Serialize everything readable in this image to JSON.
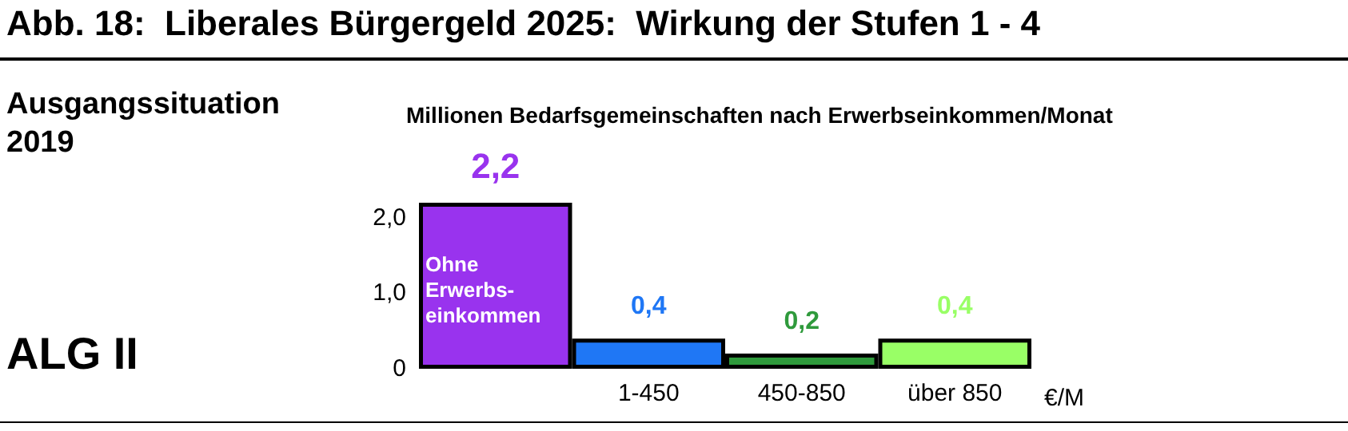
{
  "chart_data": {
    "type": "bar",
    "title": "Abb. 18:  Liberales Bürgergeld 2025:  Wirkung der Stufen 1 - 4",
    "subtitle": "Millionen Bedarfsgemeinschaften nach Erwerbseinkommen/Monat",
    "xlabel": "€/M",
    "categories": [
      null,
      "1-450",
      "450-850",
      "über 850"
    ],
    "values": [
      2.2,
      0.4,
      0.2,
      0.4
    ],
    "value_labels": [
      "2,2",
      "0,4",
      "0,2",
      "0,4"
    ],
    "colors": [
      "#9933ee",
      "#1f77f5",
      "#2f9a3c",
      "#99ff66"
    ],
    "ylim": [
      0,
      2.2
    ],
    "yticks": [
      {
        "value": 0,
        "label": "0"
      },
      {
        "value": 1,
        "label": "1,0"
      },
      {
        "value": 2,
        "label": "2,0"
      }
    ],
    "annotations": [
      "Ausgangssituation 2019",
      "ALG II",
      "Ohne Erwerbs- einkommen"
    ]
  }
}
